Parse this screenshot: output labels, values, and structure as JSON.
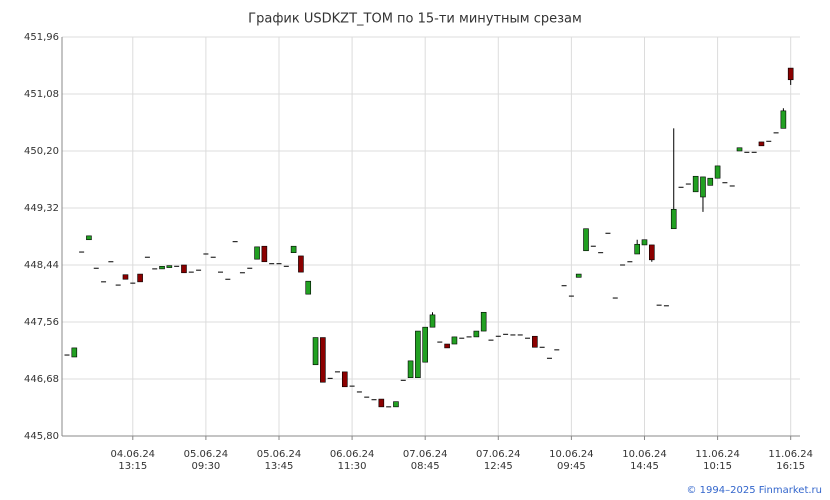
{
  "chart_data": {
    "type": "candlestick",
    "title": "График USDKZT_TOM по 15-ти минутным срезам",
    "credit": "© 1994–2025 Finmarket.ru",
    "up_color": "#22a022",
    "down_color": "#8b0000",
    "grid": true,
    "ylim": [
      445.8,
      451.96
    ],
    "yticks": [
      {
        "value": 445.8,
        "label": "445,80"
      },
      {
        "value": 446.68,
        "label": "446,68"
      },
      {
        "value": 447.56,
        "label": "447,56"
      },
      {
        "value": 448.44,
        "label": "448,44"
      },
      {
        "value": 449.32,
        "label": "449,32"
      },
      {
        "value": 450.2,
        "label": "450,20"
      },
      {
        "value": 451.08,
        "label": "451,08"
      },
      {
        "value": 451.96,
        "label": "451,96"
      }
    ],
    "categories": [
      null,
      null,
      null,
      null,
      null,
      null,
      null,
      null,
      null,
      "04.06.24 13:15",
      null,
      null,
      null,
      null,
      null,
      null,
      null,
      null,
      null,
      "05.06.24 09:30",
      null,
      null,
      null,
      null,
      null,
      null,
      null,
      null,
      null,
      "05.06.24 13:45",
      null,
      null,
      null,
      null,
      null,
      null,
      null,
      null,
      null,
      "06.06.24 11:30",
      null,
      null,
      null,
      null,
      null,
      null,
      null,
      null,
      null,
      "07.06.24 08:45",
      null,
      null,
      null,
      null,
      null,
      null,
      null,
      null,
      null,
      "07.06.24 12:45",
      null,
      null,
      null,
      null,
      null,
      null,
      null,
      null,
      null,
      "10.06.24 09:45",
      null,
      null,
      null,
      null,
      null,
      null,
      null,
      null,
      null,
      "10.06.24 14:45",
      null,
      null,
      null,
      null,
      null,
      null,
      null,
      null,
      null,
      "11.06.24 10:15",
      null,
      null,
      null,
      null,
      null,
      null,
      null,
      null,
      null,
      "11.06.24 16:15"
    ],
    "open": [
      447.05,
      447.02,
      448.64,
      448.83,
      448.39,
      448.18,
      448.49,
      448.13,
      448.29,
      448.16,
      448.3,
      448.56,
      448.38,
      448.38,
      448.4,
      448.42,
      448.44,
      448.33,
      448.36,
      448.61,
      448.56,
      448.33,
      448.22,
      448.8,
      448.32,
      448.39,
      448.53,
      448.73,
      448.46,
      448.46,
      448.42,
      448.63,
      448.58,
      447.99,
      446.9,
      447.32,
      446.69,
      446.79,
      446.79,
      446.57,
      446.48,
      446.4,
      446.36,
      446.37,
      446.25,
      446.25,
      446.66,
      446.7,
      446.7,
      446.94,
      447.48,
      447.25,
      447.22,
      447.22,
      447.31,
      447.33,
      447.33,
      447.42,
      447.28,
      447.34,
      447.37,
      447.36,
      447.36,
      447.31,
      447.34,
      447.17,
      447.0,
      447.13,
      448.12,
      447.96,
      448.25,
      448.66,
      448.73,
      448.63,
      448.93,
      447.93,
      448.44,
      448.49,
      448.61,
      448.75,
      448.75,
      447.82,
      447.81,
      449.0,
      449.64,
      449.69,
      449.57,
      449.49,
      449.67,
      449.78,
      449.71,
      449.66,
      450.2,
      450.18,
      450.18,
      450.34,
      450.35,
      450.48,
      450.55,
      451.48
    ],
    "high": [
      447.05,
      447.16,
      448.64,
      448.89,
      448.39,
      448.18,
      448.49,
      448.13,
      448.29,
      448.16,
      448.3,
      448.56,
      448.38,
      448.42,
      448.43,
      448.42,
      448.44,
      448.33,
      448.36,
      448.61,
      448.56,
      448.33,
      448.22,
      448.8,
      448.32,
      448.39,
      448.72,
      448.73,
      448.46,
      448.46,
      448.42,
      448.73,
      448.58,
      448.19,
      447.32,
      447.32,
      446.69,
      446.79,
      446.79,
      446.57,
      446.48,
      446.4,
      446.36,
      446.37,
      446.25,
      446.33,
      446.66,
      446.96,
      447.42,
      447.48,
      447.71,
      447.25,
      447.22,
      447.33,
      447.31,
      447.33,
      447.42,
      447.71,
      447.28,
      447.34,
      447.37,
      447.36,
      447.36,
      447.31,
      447.34,
      447.17,
      447.0,
      447.13,
      448.12,
      447.96,
      448.3,
      449.0,
      448.73,
      448.63,
      448.93,
      447.93,
      448.44,
      448.49,
      448.83,
      448.83,
      448.75,
      447.82,
      447.81,
      450.55,
      449.64,
      449.69,
      449.81,
      449.8,
      449.78,
      449.97,
      449.71,
      449.66,
      450.25,
      450.18,
      450.18,
      450.34,
      450.35,
      450.48,
      450.86,
      451.48
    ],
    "low": [
      447.05,
      447.02,
      448.64,
      448.83,
      448.39,
      448.18,
      448.49,
      448.13,
      448.22,
      448.16,
      448.18,
      448.56,
      448.38,
      448.38,
      448.4,
      448.42,
      448.32,
      448.33,
      448.36,
      448.61,
      448.56,
      448.33,
      448.22,
      448.8,
      448.32,
      448.39,
      448.53,
      448.49,
      448.46,
      448.46,
      448.42,
      448.63,
      448.33,
      447.99,
      446.9,
      446.63,
      446.69,
      446.79,
      446.56,
      446.57,
      446.48,
      446.4,
      446.36,
      446.25,
      446.25,
      446.25,
      446.66,
      446.7,
      446.7,
      446.94,
      447.48,
      447.25,
      447.16,
      447.22,
      447.31,
      447.33,
      447.33,
      447.42,
      447.28,
      447.34,
      447.37,
      447.36,
      447.36,
      447.31,
      447.17,
      447.17,
      447.0,
      447.13,
      448.12,
      447.96,
      448.25,
      448.66,
      448.73,
      448.63,
      448.93,
      447.93,
      448.44,
      448.49,
      448.61,
      448.75,
      448.49,
      447.82,
      447.81,
      449.0,
      449.64,
      449.69,
      449.57,
      449.26,
      449.67,
      449.78,
      449.71,
      449.66,
      450.2,
      450.18,
      450.18,
      450.28,
      450.35,
      450.48,
      450.55,
      451.22
    ],
    "close": [
      447.05,
      447.16,
      448.64,
      448.89,
      448.39,
      448.18,
      448.49,
      448.13,
      448.22,
      448.16,
      448.18,
      448.56,
      448.38,
      448.42,
      448.43,
      448.42,
      448.32,
      448.33,
      448.36,
      448.61,
      448.56,
      448.33,
      448.22,
      448.8,
      448.32,
      448.39,
      448.72,
      448.49,
      448.46,
      448.46,
      448.42,
      448.73,
      448.33,
      448.19,
      447.32,
      446.63,
      446.69,
      446.79,
      446.56,
      446.57,
      446.48,
      446.4,
      446.36,
      446.25,
      446.25,
      446.33,
      446.66,
      446.96,
      447.42,
      447.48,
      447.67,
      447.25,
      447.16,
      447.33,
      447.31,
      447.33,
      447.42,
      447.71,
      447.28,
      447.34,
      447.37,
      447.36,
      447.36,
      447.31,
      447.17,
      447.17,
      447.0,
      447.13,
      448.12,
      447.96,
      448.3,
      449.0,
      448.73,
      448.63,
      448.93,
      447.93,
      448.44,
      448.49,
      448.76,
      448.83,
      448.52,
      447.82,
      447.81,
      449.3,
      449.64,
      449.69,
      449.81,
      449.8,
      449.78,
      449.97,
      449.71,
      449.66,
      450.25,
      450.18,
      450.18,
      450.28,
      450.35,
      450.48,
      450.82,
      451.3
    ]
  }
}
